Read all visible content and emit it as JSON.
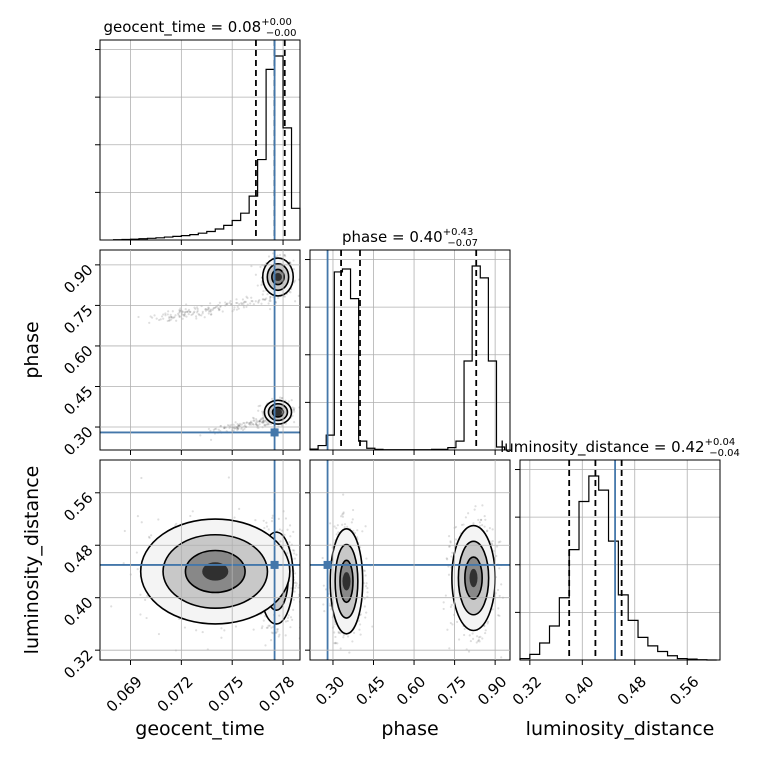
{
  "chart_data": {
    "type": "corner",
    "parameters": [
      "geocent_time",
      "phase",
      "luminosity_distance"
    ],
    "titles": [
      {
        "base": "geocent_time = 0.08",
        "plus": "+0.00",
        "minus": "−0.00"
      },
      {
        "base": "phase = 0.40",
        "plus": "+0.43",
        "minus": "−0.07"
      },
      {
        "base": "luminosity_distance = 0.42",
        "plus": "+0.04",
        "minus": "−0.04"
      }
    ],
    "ranges": {
      "geocent_time": [
        0.0672,
        0.079
      ],
      "phase": [
        0.215,
        0.955
      ],
      "luminosity_distance": [
        0.305,
        0.61
      ]
    },
    "ticks": {
      "geocent_time": [
        0.069,
        0.072,
        0.075,
        0.078
      ],
      "phase": [
        0.3,
        0.45,
        0.6,
        0.75,
        0.9
      ],
      "luminosity_distance": [
        0.32,
        0.4,
        0.48,
        0.56
      ]
    },
    "tick_labels": {
      "geocent_time": [
        "0.069",
        "0.072",
        "0.075",
        "0.078"
      ],
      "phase": [
        "0.30",
        "0.45",
        "0.60",
        "0.75",
        "0.90"
      ],
      "luminosity_distance": [
        "0.32",
        "0.40",
        "0.48",
        "0.56"
      ]
    },
    "truths": {
      "geocent_time": 0.0775,
      "phase": 0.28,
      "luminosity_distance": 0.45
    },
    "quantiles": {
      "geocent_time": [
        0.0764,
        0.0775,
        0.0781
      ],
      "phase": [
        0.33,
        0.4,
        0.83
      ],
      "luminosity_distance": [
        0.38,
        0.42,
        0.46
      ]
    },
    "histograms": {
      "geocent_time": {
        "edges": [
          0.068,
          0.0685,
          0.069,
          0.0695,
          0.07,
          0.0705,
          0.071,
          0.0715,
          0.072,
          0.0725,
          0.073,
          0.0735,
          0.074,
          0.0745,
          0.075,
          0.0755,
          0.076,
          0.0765,
          0.077,
          0.0775,
          0.078,
          0.0785,
          0.079
        ],
        "counts": [
          1,
          2,
          3,
          5,
          7,
          9,
          12,
          15,
          18,
          22,
          28,
          35,
          45,
          60,
          80,
          110,
          180,
          330,
          700,
          755,
          460,
          130
        ]
      },
      "phase": {
        "edges": [
          0.215,
          0.245,
          0.275,
          0.305,
          0.335,
          0.365,
          0.395,
          0.425,
          0.455,
          0.485,
          0.515,
          0.545,
          0.575,
          0.605,
          0.635,
          0.665,
          0.695,
          0.725,
          0.755,
          0.785,
          0.815,
          0.845,
          0.875,
          0.905,
          0.935
        ],
        "counts": [
          3,
          15,
          50,
          600,
          610,
          510,
          30,
          6,
          2,
          1,
          1,
          1,
          1,
          1,
          1,
          2,
          2,
          8,
          30,
          300,
          620,
          580,
          300,
          10
        ]
      },
      "luminosity_distance": {
        "edges": [
          0.305,
          0.32,
          0.335,
          0.35,
          0.365,
          0.38,
          0.395,
          0.41,
          0.425,
          0.44,
          0.455,
          0.47,
          0.485,
          0.5,
          0.515,
          0.53,
          0.545,
          0.56,
          0.575,
          0.59,
          0.605
        ],
        "counts": [
          5,
          20,
          60,
          120,
          220,
          390,
          560,
          650,
          600,
          420,
          230,
          140,
          80,
          50,
          30,
          15,
          5,
          3,
          1,
          0
        ]
      }
    },
    "scatter_clusters": [
      {
        "x": "geocent_time",
        "y": "phase",
        "blobs": [
          {
            "cx": 0.0777,
            "cy": 0.855,
            "sx": 0.00045,
            "sy": 0.035,
            "n": 420
          },
          {
            "cx": 0.0777,
            "cy": 0.355,
            "sx": 0.0004,
            "sy": 0.022,
            "n": 360
          },
          {
            "cx": 0.0705,
            "cy": 0.7,
            "sx": 0.002,
            "sy": 0.018,
            "n": 160,
            "tx": 0.0766,
            "ty": 0.77
          },
          {
            "cx": 0.074,
            "cy": 0.28,
            "sx": 0.0012,
            "sy": 0.015,
            "n": 120,
            "tx": 0.0772,
            "ty": 0.33
          }
        ]
      },
      {
        "x": "geocent_time",
        "y": "luminosity_distance",
        "blobs": [
          {
            "cx": 0.0776,
            "cy": 0.43,
            "sx": 0.0005,
            "sy": 0.035,
            "n": 800
          },
          {
            "cx": 0.074,
            "cy": 0.44,
            "sx": 0.0022,
            "sy": 0.04,
            "n": 450
          }
        ]
      },
      {
        "x": "phase",
        "y": "luminosity_distance",
        "blobs": [
          {
            "cx": 0.35,
            "cy": 0.425,
            "sx": 0.03,
            "sy": 0.04,
            "n": 700
          },
          {
            "cx": 0.82,
            "cy": 0.43,
            "sx": 0.04,
            "sy": 0.04,
            "n": 700
          }
        ]
      }
    ],
    "grid": true
  }
}
